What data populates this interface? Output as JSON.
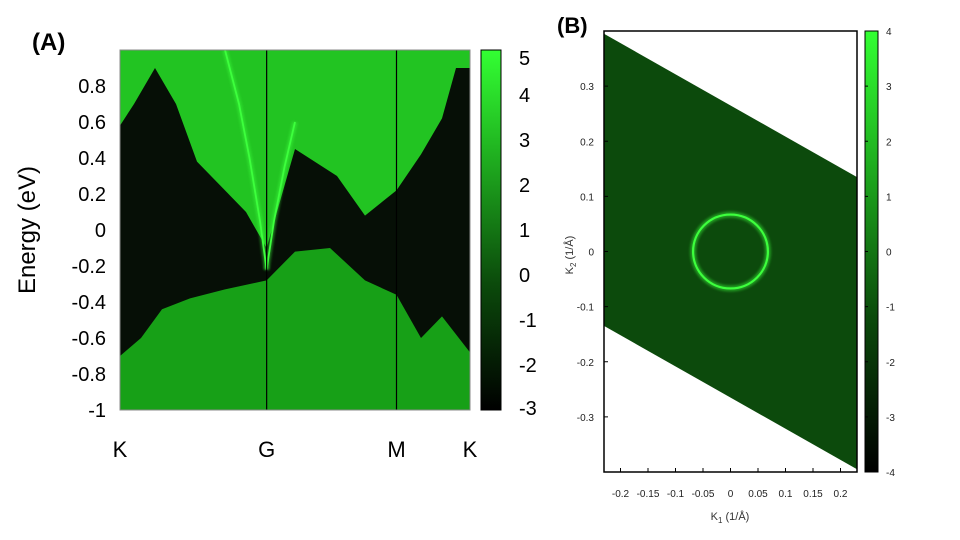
{
  "chart_data": [
    {
      "type": "heatmap",
      "panel_label": "(A)",
      "ylabel": "Energy (eV)",
      "xlabel": "",
      "ylim": [
        -1,
        1
      ],
      "y_ticks": [
        {
          "value": 0.8,
          "label": "0.8"
        },
        {
          "value": 0.6,
          "label": "0.6"
        },
        {
          "value": 0.4,
          "label": "0.4"
        },
        {
          "value": 0.2,
          "label": "0.2"
        },
        {
          "value": 0,
          "label": "0"
        },
        {
          "value": -0.2,
          "label": "-0.2"
        },
        {
          "value": -0.4,
          "label": "-0.4"
        },
        {
          "value": -0.6,
          "label": "-0.6"
        },
        {
          "value": -0.8,
          "label": "-0.8"
        },
        {
          "value": -1,
          "label": "-1"
        }
      ],
      "k_path": [
        {
          "label": "K",
          "position": 0
        },
        {
          "label": "G",
          "position": 0.419
        },
        {
          "label": "M",
          "position": 0.79
        },
        {
          "label": "K",
          "position": 1
        }
      ],
      "vertical_lines_at": [
        0.419,
        0.79
      ],
      "colorbar": {
        "range": [
          -3,
          5
        ],
        "ticks": [
          {
            "value": 5,
            "label": "5"
          },
          {
            "value": 4,
            "label": "4"
          },
          {
            "value": 3,
            "label": "3"
          },
          {
            "value": 2,
            "label": "2"
          },
          {
            "value": 1,
            "label": "1"
          },
          {
            "value": 0,
            "label": "0"
          },
          {
            "value": -1,
            "label": "-1"
          },
          {
            "value": -2,
            "label": "-2"
          },
          {
            "value": -3,
            "label": "-3"
          }
        ],
        "color_low": "#000000",
        "color_high": "#33ff33"
      },
      "colors": {
        "dark": "#060f06",
        "continuum": "#17a017",
        "continuum_bright": "#22c422",
        "surface_state": "#3dff3d",
        "line": "#000000"
      },
      "features": {
        "dirac_point": {
          "position": 0.419,
          "energy": -0.22
        },
        "upper_band_edge": [
          [
            0,
            0.58
          ],
          [
            0.04,
            0.7
          ],
          [
            0.1,
            0.9
          ],
          [
            0.16,
            0.7
          ],
          [
            0.22,
            0.38
          ],
          [
            0.3,
            0.22
          ],
          [
            0.36,
            0.1
          ],
          [
            0.419,
            -0.1
          ],
          [
            0.5,
            0.45
          ],
          [
            0.62,
            0.3
          ],
          [
            0.7,
            0.08
          ],
          [
            0.79,
            0.22
          ],
          [
            0.86,
            0.42
          ],
          [
            0.92,
            0.62
          ],
          [
            0.96,
            0.9
          ],
          [
            1,
            0.9
          ]
        ],
        "lower_band_edge": [
          [
            0,
            -0.7
          ],
          [
            0.06,
            -0.6
          ],
          [
            0.12,
            -0.44
          ],
          [
            0.2,
            -0.38
          ],
          [
            0.3,
            -0.33
          ],
          [
            0.419,
            -0.28
          ],
          [
            0.5,
            -0.12
          ],
          [
            0.6,
            -0.1
          ],
          [
            0.7,
            -0.28
          ],
          [
            0.79,
            -0.36
          ],
          [
            0.86,
            -0.6
          ],
          [
            0.92,
            -0.48
          ],
          [
            1,
            -0.68
          ]
        ],
        "surface_state_left": [
          [
            0.3,
            1.0
          ],
          [
            0.34,
            0.7
          ],
          [
            0.37,
            0.4
          ],
          [
            0.4,
            0.05
          ],
          [
            0.419,
            -0.22
          ]
        ],
        "surface_state_right": [
          [
            0.419,
            -0.22
          ],
          [
            0.44,
            0.05
          ],
          [
            0.47,
            0.35
          ],
          [
            0.5,
            0.6
          ]
        ]
      }
    },
    {
      "type": "heatmap",
      "panel_label": "(B)",
      "xlabel_main": "K",
      "xlabel_sub": "1",
      "xlabel_unit": " (1/Å)",
      "ylabel_main": "K",
      "ylabel_sub": "2",
      "ylabel_unit": " (1/Å)",
      "xlim": [
        -0.23,
        0.23
      ],
      "ylim": [
        -0.4,
        0.4
      ],
      "x_ticks": [
        {
          "value": -0.2,
          "label": "-0.2"
        },
        {
          "value": -0.15,
          "label": "-0.15"
        },
        {
          "value": -0.1,
          "label": "-0.1"
        },
        {
          "value": -0.05,
          "label": "-0.05"
        },
        {
          "value": 0,
          "label": "0"
        },
        {
          "value": 0.05,
          "label": "0.05"
        },
        {
          "value": 0.1,
          "label": "0.1"
        },
        {
          "value": 0.15,
          "label": "0.15"
        },
        {
          "value": 0.2,
          "label": "0.2"
        }
      ],
      "y_ticks": [
        {
          "value": 0.3,
          "label": "0.3"
        },
        {
          "value": 0.2,
          "label": "0.2"
        },
        {
          "value": 0.1,
          "label": "0.1"
        },
        {
          "value": 0,
          "label": "0"
        },
        {
          "value": -0.1,
          "label": "-0.1"
        },
        {
          "value": -0.2,
          "label": "-0.2"
        },
        {
          "value": -0.3,
          "label": "-0.3"
        }
      ],
      "data_region": [
        [
          -0.23,
          0.395
        ],
        [
          0.23,
          0.135
        ],
        [
          0.23,
          -0.395
        ],
        [
          -0.23,
          -0.135
        ]
      ],
      "fermi_ring": {
        "center": [
          0,
          0
        ],
        "radius_x": 0.068,
        "radius_y": 0.067
      },
      "colorbar": {
        "range": [
          -4,
          4
        ],
        "ticks": [
          {
            "value": 4,
            "label": "4"
          },
          {
            "value": 3,
            "label": "3"
          },
          {
            "value": 2,
            "label": "2"
          },
          {
            "value": 1,
            "label": "1"
          },
          {
            "value": 0,
            "label": "0"
          },
          {
            "value": -1,
            "label": "-1"
          },
          {
            "value": -2,
            "label": "-2"
          },
          {
            "value": -3,
            "label": "-3"
          },
          {
            "value": -4,
            "label": "-4"
          }
        ],
        "color_low": "#000000",
        "color_high": "#33ff33"
      },
      "colors": {
        "background": "#0c4a0c",
        "ring": "#3dff3d"
      }
    }
  ]
}
